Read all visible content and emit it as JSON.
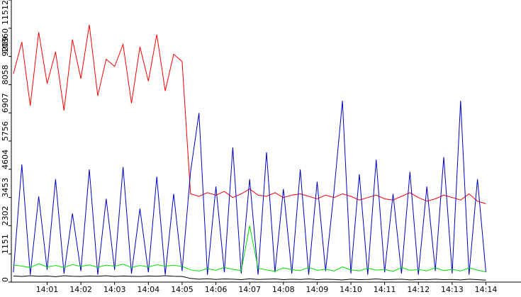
{
  "chart_data": {
    "type": "line",
    "x": [
      840,
      840.25,
      840.5,
      840.75,
      841,
      841.25,
      841.5,
      841.75,
      842,
      842.25,
      842.5,
      842.75,
      843,
      843.25,
      843.5,
      843.75,
      844,
      844.25,
      844.5,
      844.75,
      845,
      845.25,
      845.5,
      845.75,
      846,
      846.25,
      846.5,
      846.75,
      847,
      847.25,
      847.5,
      847.75,
      848,
      848.25,
      848.5,
      848.75,
      849,
      849.25,
      849.5,
      849.75,
      850,
      850.25,
      850.5,
      850.75,
      851,
      851.25,
      851.5,
      851.75,
      852,
      852.25,
      852.5,
      852.75,
      853,
      853.25,
      853.5,
      853.75,
      854
    ],
    "xlim": [
      839.94,
      855.04
    ],
    "xticks": [
      {
        "value": 841,
        "label": "14:01"
      },
      {
        "value": 842,
        "label": "14:02"
      },
      {
        "value": 843,
        "label": "14:03"
      },
      {
        "value": 844,
        "label": "14:04"
      },
      {
        "value": 845,
        "label": "14:05"
      },
      {
        "value": 846,
        "label": "14:06"
      },
      {
        "value": 847,
        "label": "14:07"
      },
      {
        "value": 848,
        "label": "14:08"
      },
      {
        "value": 849,
        "label": "14:09"
      },
      {
        "value": 850,
        "label": "14:10"
      },
      {
        "value": 851,
        "label": "14:11"
      },
      {
        "value": 852,
        "label": "14:12"
      },
      {
        "value": 853,
        "label": "14:13"
      },
      {
        "value": 854,
        "label": "14:14"
      }
    ],
    "ylim": [
      0,
      11512
    ],
    "yticks": [
      0,
      1151,
      2302,
      3453,
      4604,
      5756,
      6907,
      8058,
      9209,
      10360,
      11512
    ],
    "series": [
      {
        "color": "#ff0000",
        "values": [
          8500,
          9800,
          7200,
          10200,
          8100,
          9400,
          7000,
          9900,
          8300,
          10500,
          7600,
          9100,
          8800,
          9700,
          7300,
          9600,
          8200,
          10100,
          7800,
          9300,
          9000,
          3600,
          3500,
          3650,
          3550,
          3700,
          3450,
          3600,
          3800,
          3550,
          3500,
          3650,
          3450,
          3550,
          3600,
          3500,
          3400,
          3550,
          3450,
          3600,
          3500,
          3350,
          3450,
          3550,
          3400,
          3350,
          3500,
          3650,
          3450,
          3300,
          3400,
          3550,
          3450,
          3350,
          3600,
          3300,
          3200
        ]
      },
      {
        "color": "#0000c0",
        "values": [
          400,
          4800,
          300,
          3500,
          500,
          4200,
          350,
          2800,
          450,
          4600,
          300,
          3400,
          500,
          4700,
          350,
          3000,
          400,
          4300,
          300,
          3600,
          450,
          4500,
          6900,
          300,
          3900,
          400,
          5500,
          350,
          4200,
          300,
          5300,
          400,
          3800,
          350,
          4600,
          300,
          4100,
          450,
          3700,
          7400,
          350,
          4400,
          300,
          5000,
          400,
          3600,
          350,
          4500,
          300,
          3900,
          450,
          5100,
          350,
          7400,
          300,
          4200,
          400
        ]
      },
      {
        "color": "#00e000",
        "values": [
          700,
          650,
          600,
          750,
          620,
          680,
          600,
          720,
          640,
          700,
          610,
          690,
          650,
          730,
          600,
          680,
          620,
          710,
          650,
          690,
          640,
          500,
          450,
          550,
          480,
          600,
          520,
          470,
          2300,
          560,
          500,
          440,
          580,
          510,
          470,
          600,
          480,
          530,
          450,
          620,
          500,
          460,
          570,
          490,
          520,
          440,
          600,
          480,
          510,
          460,
          590,
          470,
          520,
          450,
          580,
          490,
          420
        ]
      },
      {
        "color": "#000000",
        "values": [
          250,
          230,
          260,
          240,
          250,
          220,
          260,
          240,
          230,
          250,
          240,
          260,
          230,
          250,
          240,
          230,
          250,
          240,
          260,
          240,
          230,
          150,
          120,
          140,
          110,
          130,
          120,
          100,
          140,
          110,
          120,
          130,
          100,
          120,
          110,
          130,
          100,
          120,
          110,
          90,
          120,
          100,
          110,
          130,
          100,
          110,
          120,
          90,
          110,
          100,
          120,
          100,
          110,
          90,
          120,
          100,
          80
        ]
      }
    ]
  }
}
